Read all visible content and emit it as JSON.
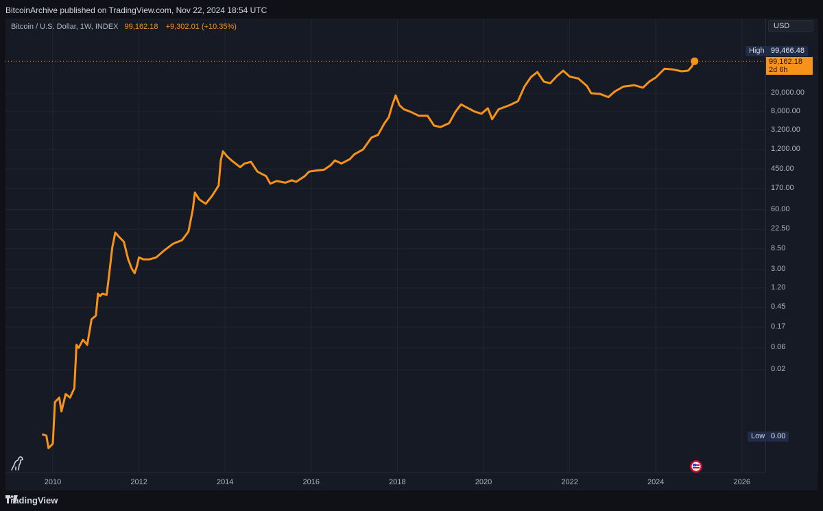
{
  "header": {
    "published": "BitcoinArchive published on TradingView.com, Nov 22, 2024 18:54 UTC"
  },
  "legend": {
    "symbol": "Bitcoin / U.S. Dollar, 1W, INDEX",
    "price": "99,162.18",
    "change": "+9,302.01 (+10.35%)"
  },
  "currency_label": "USD",
  "price_scale": {
    "high_label": "High",
    "high_value": "99,466.48",
    "low_label": "Low",
    "low_value": "0.00",
    "current_price": "99,162.18",
    "countdown": "2d 6h"
  },
  "footer": {
    "brand": "TradingView"
  },
  "colors": {
    "series": "#f7931a",
    "background": "#161a25",
    "grid": "#222633"
  },
  "icons": {
    "logo": "tradingview-logo-icon",
    "dino": "dinosaur-icon",
    "flag": "us-flag-icon"
  },
  "chart_data": {
    "type": "line",
    "y_scale": "log",
    "grid": true,
    "y_tick_labels": [
      "20,000.00",
      "8,000.00",
      "3,200.00",
      "1,200.00",
      "450.00",
      "170.00",
      "60.00",
      "22.50",
      "8.50",
      "3.00",
      "1.20",
      "0.45",
      "0.17",
      "0.06",
      "0.02"
    ],
    "y_tick_values": [
      20000,
      8000,
      3200,
      1200,
      450,
      170,
      60,
      22.5,
      8.5,
      3,
      1.2,
      0.45,
      0.17,
      0.06,
      0.02
    ],
    "x_tick_labels": [
      "2010",
      "2012",
      "2014",
      "2016",
      "2018",
      "2020",
      "2022",
      "2024",
      "2026"
    ],
    "x_tick_years": [
      2010,
      2012,
      2014,
      2016,
      2018,
      2020,
      2022,
      2024,
      2026
    ],
    "series": [
      {
        "points": [
          [
            2009.75,
            0.0008
          ],
          [
            2009.85,
            0.00075
          ],
          [
            2009.9,
            0.0004
          ],
          [
            2010.0,
            0.0005
          ],
          [
            2010.05,
            0.004
          ],
          [
            2010.15,
            0.005
          ],
          [
            2010.2,
            0.0025
          ],
          [
            2010.3,
            0.006
          ],
          [
            2010.4,
            0.005
          ],
          [
            2010.5,
            0.008
          ],
          [
            2010.55,
            0.07
          ],
          [
            2010.6,
            0.06
          ],
          [
            2010.7,
            0.09
          ],
          [
            2010.8,
            0.07
          ],
          [
            2010.9,
            0.25
          ],
          [
            2011.0,
            0.3
          ],
          [
            2011.05,
            0.9
          ],
          [
            2011.1,
            0.8
          ],
          [
            2011.15,
            0.9
          ],
          [
            2011.25,
            0.85
          ],
          [
            2011.3,
            2.0
          ],
          [
            2011.38,
            9.0
          ],
          [
            2011.45,
            19.0
          ],
          [
            2011.55,
            15.0
          ],
          [
            2011.65,
            12.0
          ],
          [
            2011.75,
            5.0
          ],
          [
            2011.83,
            3.2
          ],
          [
            2011.9,
            2.5
          ],
          [
            2011.95,
            3.5
          ],
          [
            2012.0,
            5.5
          ],
          [
            2012.1,
            5.0
          ],
          [
            2012.25,
            5.0
          ],
          [
            2012.4,
            5.5
          ],
          [
            2012.6,
            8.0
          ],
          [
            2012.8,
            11.0
          ],
          [
            2013.0,
            13.0
          ],
          [
            2013.15,
            20.0
          ],
          [
            2013.25,
            60.0
          ],
          [
            2013.3,
            140.0
          ],
          [
            2013.4,
            100.0
          ],
          [
            2013.55,
            80.0
          ],
          [
            2013.7,
            120.0
          ],
          [
            2013.85,
            200.0
          ],
          [
            2013.9,
            700.0
          ],
          [
            2013.95,
            1100.0
          ],
          [
            2014.05,
            850.0
          ],
          [
            2014.15,
            700.0
          ],
          [
            2014.35,
            500.0
          ],
          [
            2014.45,
            600.0
          ],
          [
            2014.6,
            650.0
          ],
          [
            2014.75,
            400.0
          ],
          [
            2014.95,
            320.0
          ],
          [
            2015.05,
            220.0
          ],
          [
            2015.2,
            250.0
          ],
          [
            2015.4,
            230.0
          ],
          [
            2015.55,
            260.0
          ],
          [
            2015.65,
            240.0
          ],
          [
            2015.85,
            320.0
          ],
          [
            2015.95,
            400.0
          ],
          [
            2016.1,
            420.0
          ],
          [
            2016.3,
            440.0
          ],
          [
            2016.45,
            550.0
          ],
          [
            2016.55,
            700.0
          ],
          [
            2016.7,
            600.0
          ],
          [
            2016.9,
            750.0
          ],
          [
            2017.0,
            950.0
          ],
          [
            2017.2,
            1200.0
          ],
          [
            2017.4,
            2200.0
          ],
          [
            2017.55,
            2500.0
          ],
          [
            2017.7,
            4500.0
          ],
          [
            2017.8,
            6000.0
          ],
          [
            2017.88,
            11000.0
          ],
          [
            2017.96,
            18000.0
          ],
          [
            2018.05,
            11000.0
          ],
          [
            2018.15,
            9000.0
          ],
          [
            2018.3,
            8000.0
          ],
          [
            2018.5,
            6500.0
          ],
          [
            2018.7,
            6500.0
          ],
          [
            2018.85,
            4000.0
          ],
          [
            2019.0,
            3700.0
          ],
          [
            2019.2,
            4500.0
          ],
          [
            2019.35,
            8000.0
          ],
          [
            2019.48,
            11500.0
          ],
          [
            2019.6,
            10000.0
          ],
          [
            2019.8,
            8000.0
          ],
          [
            2019.95,
            7200.0
          ],
          [
            2020.1,
            9500.0
          ],
          [
            2020.2,
            5500.0
          ],
          [
            2020.35,
            9000.0
          ],
          [
            2020.6,
            11000.0
          ],
          [
            2020.8,
            13500.0
          ],
          [
            2020.95,
            28000.0
          ],
          [
            2021.1,
            45000.0
          ],
          [
            2021.25,
            58000.0
          ],
          [
            2021.4,
            36000.0
          ],
          [
            2021.55,
            33000.0
          ],
          [
            2021.7,
            47000.0
          ],
          [
            2021.85,
            62000.0
          ],
          [
            2022.0,
            46000.0
          ],
          [
            2022.2,
            42000.0
          ],
          [
            2022.4,
            29000.0
          ],
          [
            2022.5,
            20000.0
          ],
          [
            2022.7,
            19500.0
          ],
          [
            2022.9,
            16500.0
          ],
          [
            2023.05,
            22000.0
          ],
          [
            2023.25,
            28000.0
          ],
          [
            2023.5,
            30000.0
          ],
          [
            2023.7,
            26500.0
          ],
          [
            2023.85,
            36000.0
          ],
          [
            2024.0,
            44000.0
          ],
          [
            2024.2,
            68000.0
          ],
          [
            2024.4,
            66000.0
          ],
          [
            2024.6,
            60000.0
          ],
          [
            2024.75,
            62000.0
          ],
          [
            2024.83,
            75000.0
          ],
          [
            2024.9,
            99162.18
          ]
        ]
      }
    ]
  }
}
